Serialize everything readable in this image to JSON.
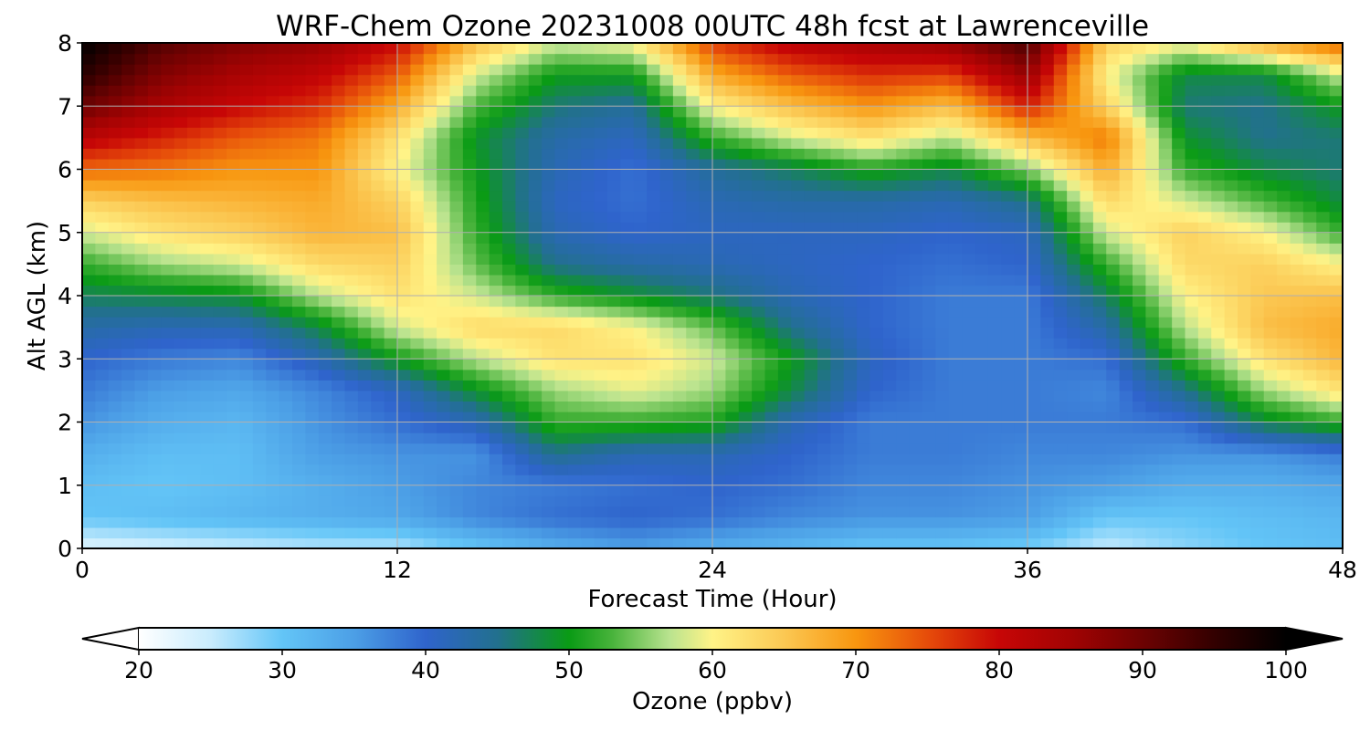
{
  "chart_data": {
    "type": "heatmap",
    "title": "WRF-Chem Ozone  20231008 00UTC 48h fcst at Lawrenceville",
    "xlabel": "Forecast Time (Hour)",
    "ylabel": "Alt AGL (km)",
    "xlim": [
      0,
      48
    ],
    "ylim": [
      0,
      8
    ],
    "xticks": [
      0,
      12,
      24,
      36,
      48
    ],
    "yticks": [
      0,
      1,
      2,
      3,
      4,
      5,
      6,
      7,
      8
    ],
    "grid": true,
    "x": [
      0,
      3,
      6,
      9,
      12,
      15,
      18,
      21,
      24,
      27,
      30,
      33,
      36,
      39,
      42,
      45,
      48
    ],
    "y": [
      0,
      0.5,
      1,
      1.5,
      2,
      2.5,
      3,
      3.5,
      4,
      4.5,
      5,
      5.5,
      6,
      6.5,
      7,
      7.5,
      8
    ],
    "z": [
      [
        23,
        24,
        25,
        26,
        26,
        30,
        33,
        35,
        33,
        32,
        30,
        30,
        29,
        25,
        28,
        30,
        31
      ],
      [
        30,
        31,
        32,
        33,
        34,
        37,
        39,
        40,
        39,
        37,
        36,
        36,
        35,
        30,
        30,
        31,
        32
      ],
      [
        31,
        30,
        31,
        33,
        35,
        37,
        38,
        39,
        40,
        39,
        37,
        37,
        36,
        35,
        33,
        33,
        34
      ],
      [
        33,
        31,
        31,
        35,
        36,
        36,
        45,
        42,
        42,
        40,
        38,
        38,
        37,
        37,
        36,
        36,
        38
      ],
      [
        36,
        33,
        32,
        36,
        39,
        42,
        52,
        52,
        51,
        42,
        38,
        38,
        38,
        38,
        39,
        48,
        52
      ],
      [
        38,
        35,
        34,
        37,
        41,
        49,
        56,
        59,
        56,
        48,
        40,
        38,
        38,
        37,
        45,
        56,
        62
      ],
      [
        40,
        38,
        37,
        42,
        50,
        57,
        62,
        62,
        58,
        50,
        41,
        38,
        38,
        39,
        52,
        62,
        67
      ],
      [
        43,
        42,
        42,
        48,
        58,
        63,
        63,
        60,
        54,
        45,
        40,
        38,
        38,
        43,
        57,
        66,
        68
      ],
      [
        47,
        48,
        49,
        57,
        62,
        58,
        52,
        49,
        46,
        42,
        40,
        38,
        38,
        47,
        60,
        65,
        66
      ],
      [
        52,
        56,
        58,
        63,
        64,
        54,
        45,
        43,
        42,
        41,
        40,
        39,
        40,
        52,
        63,
        64,
        60
      ],
      [
        58,
        62,
        64,
        67,
        66,
        52,
        42,
        40,
        41,
        41,
        41,
        40,
        41,
        58,
        64,
        60,
        52
      ],
      [
        64,
        66,
        67,
        68,
        64,
        51,
        41,
        39,
        42,
        43,
        43,
        42,
        45,
        63,
        58,
        53,
        48
      ],
      [
        73,
        72,
        70,
        70,
        60,
        50,
        42,
        39,
        44,
        47,
        51,
        48,
        55,
        68,
        52,
        48,
        46
      ],
      [
        82,
        78,
        74,
        72,
        62,
        49,
        43,
        41,
        52,
        58,
        62,
        57,
        66,
        72,
        49,
        45,
        46
      ],
      [
        90,
        84,
        80,
        77,
        68,
        53,
        46,
        44,
        60,
        66,
        70,
        66,
        78,
        64,
        46,
        45,
        50
      ],
      [
        96,
        88,
        84,
        81,
        74,
        58,
        50,
        50,
        68,
        74,
        77,
        76,
        86,
        60,
        48,
        48,
        58
      ],
      [
        100,
        92,
        88,
        86,
        80,
        66,
        58,
        60,
        76,
        82,
        84,
        86,
        93,
        64,
        60,
        68,
        74
      ]
    ],
    "colorbar": {
      "label": "Ozone  (ppbv)",
      "min": 20,
      "max": 100,
      "ticks": [
        20,
        30,
        40,
        50,
        60,
        70,
        80,
        90,
        100
      ],
      "extend": "both",
      "stops": [
        {
          "v": 20,
          "c": "#ffffff"
        },
        {
          "v": 25,
          "c": "#c9ecfd"
        },
        {
          "v": 30,
          "c": "#63c5f7"
        },
        {
          "v": 35,
          "c": "#4c9fe6"
        },
        {
          "v": 40,
          "c": "#2f64cc"
        },
        {
          "v": 45,
          "c": "#22708e"
        },
        {
          "v": 50,
          "c": "#0a9b15"
        },
        {
          "v": 53,
          "c": "#48b33b"
        },
        {
          "v": 57,
          "c": "#b9e38f"
        },
        {
          "v": 60,
          "c": "#fff387"
        },
        {
          "v": 65,
          "c": "#fbc853"
        },
        {
          "v": 70,
          "c": "#f8960f"
        },
        {
          "v": 75,
          "c": "#e64c0a"
        },
        {
          "v": 80,
          "c": "#c70606"
        },
        {
          "v": 85,
          "c": "#a20303"
        },
        {
          "v": 90,
          "c": "#6d0202"
        },
        {
          "v": 95,
          "c": "#330000"
        },
        {
          "v": 100,
          "c": "#000000"
        }
      ]
    }
  }
}
